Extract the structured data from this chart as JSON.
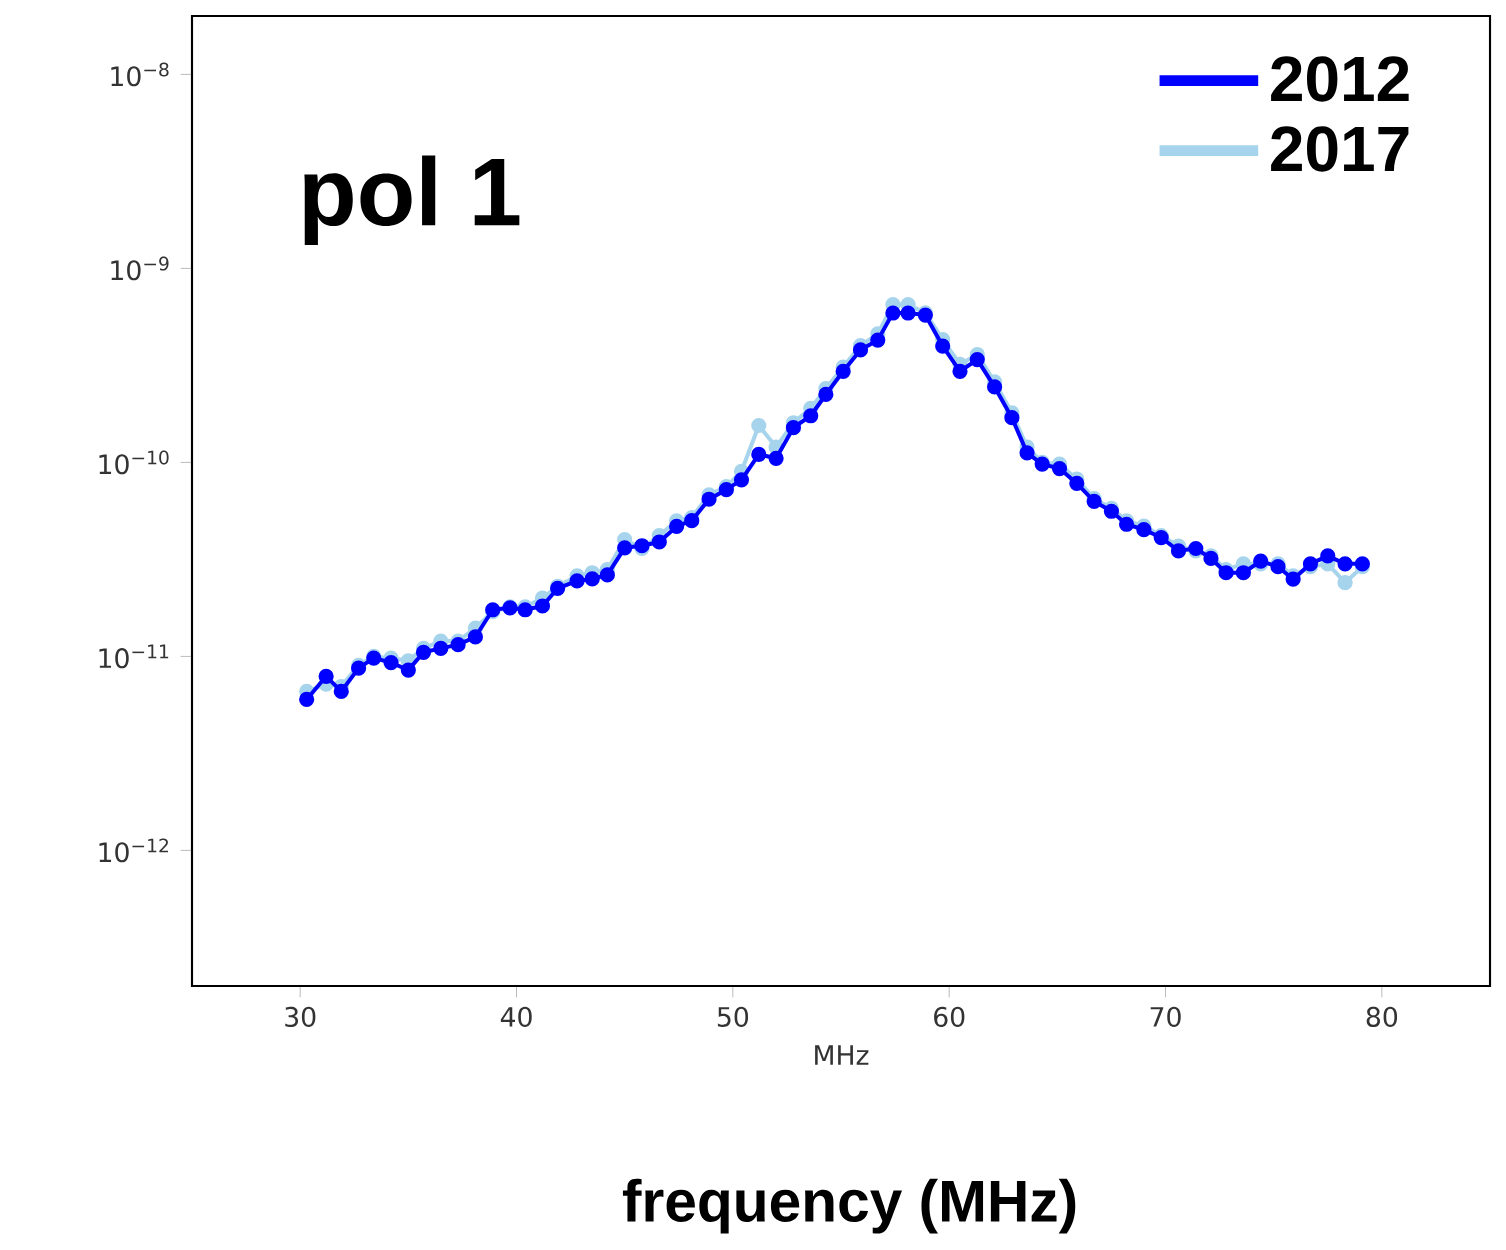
{
  "chart_data": {
    "type": "line",
    "xlabel": "MHz",
    "annotations": [
      "pol 1",
      "frequency (MHz)"
    ],
    "x": [
      30.3,
      31.2,
      31.9,
      32.7,
      33.4,
      34.2,
      35.0,
      35.7,
      36.5,
      37.3,
      38.1,
      38.9,
      39.7,
      40.4,
      41.2,
      41.9,
      42.8,
      43.5,
      44.2,
      45.0,
      45.8,
      46.6,
      47.4,
      48.1,
      48.9,
      49.7,
      50.4,
      51.2,
      52.0,
      52.8,
      53.6,
      54.3,
      55.1,
      55.9,
      56.7,
      57.4,
      58.1,
      58.9,
      59.7,
      60.5,
      61.3,
      62.1,
      62.9,
      63.6,
      64.3,
      65.1,
      65.9,
      66.7,
      67.5,
      68.2,
      69.0,
      69.8,
      70.6,
      71.4,
      72.1,
      72.8,
      73.6,
      74.4,
      75.2,
      75.9,
      76.7,
      77.5,
      78.3,
      79.1
    ],
    "series": [
      {
        "name": "2012",
        "color": "#0000ff",
        "values": [
          6e-12,
          7.9e-12,
          6.6e-12,
          8.7e-12,
          9.8e-12,
          9.3e-12,
          8.5e-12,
          1.05e-11,
          1.1e-11,
          1.15e-11,
          1.26e-11,
          1.74e-11,
          1.78e-11,
          1.74e-11,
          1.82e-11,
          2.24e-11,
          2.45e-11,
          2.51e-11,
          2.63e-11,
          3.63e-11,
          3.72e-11,
          3.89e-11,
          4.68e-11,
          5.01e-11,
          6.46e-11,
          7.24e-11,
          8.13e-11,
          1.1e-10,
          1.05e-10,
          1.51e-10,
          1.74e-10,
          2.24e-10,
          2.95e-10,
          3.8e-10,
          4.27e-10,
          5.89e-10,
          5.89e-10,
          5.75e-10,
          3.98e-10,
          2.95e-10,
          3.39e-10,
          2.45e-10,
          1.7e-10,
          1.12e-10,
          9.8e-11,
          9.3e-11,
          7.8e-11,
          6.3e-11,
          5.6e-11,
          4.8e-11,
          4.5e-11,
          4.1e-11,
          3.5e-11,
          3.6e-11,
          3.2e-11,
          2.7e-11,
          2.7e-11,
          3.1e-11,
          2.9e-11,
          2.5e-11,
          3e-11,
          3.3e-11,
          3e-11,
          3e-11
        ]
      },
      {
        "name": "2017",
        "color": "#a6d4ec",
        "values": [
          6.6e-12,
          7.2e-12,
          7e-12,
          9e-12,
          1e-11,
          9.8e-12,
          9.5e-12,
          1.1e-11,
          1.2e-11,
          1.2e-11,
          1.4e-11,
          1.7e-11,
          1.8e-11,
          1.8e-11,
          2e-11,
          2.3e-11,
          2.6e-11,
          2.7e-11,
          2.8e-11,
          4e-11,
          3.6e-11,
          4.2e-11,
          5e-11,
          5.2e-11,
          6.8e-11,
          7.5e-11,
          9e-11,
          1.55e-10,
          1.2e-10,
          1.6e-10,
          1.9e-10,
          2.4e-10,
          3.1e-10,
          4e-10,
          4.6e-10,
          6.5e-10,
          6.5e-10,
          5.9e-10,
          4.3e-10,
          3.2e-10,
          3.6e-10,
          2.6e-10,
          1.8e-10,
          1.2e-10,
          1e-10,
          9.8e-11,
          8.2e-11,
          6.5e-11,
          5.8e-11,
          5e-11,
          4.7e-11,
          4.2e-11,
          3.7e-11,
          3.5e-11,
          3.3e-11,
          2.8e-11,
          3e-11,
          3e-11,
          3e-11,
          2.6e-11,
          2.9e-11,
          3e-11,
          2.4e-11,
          2.9e-11
        ]
      }
    ],
    "xlim": [
      25,
      85
    ],
    "xticks": [
      30,
      40,
      50,
      60,
      70,
      80
    ],
    "ylim": [
      2e-13,
      2e-08
    ],
    "log": "y",
    "yticks": [
      {
        "value": 1e-12,
        "label": "10$^{−12}$"
      },
      {
        "value": 1e-11,
        "label": "10$^{−11}$"
      },
      {
        "value": 1e-10,
        "label": "10$^{−10}$"
      },
      {
        "value": 1e-09,
        "label": "10$^{−9}$"
      },
      {
        "value": 1e-08,
        "label": "10$^{−8}$"
      }
    ],
    "grid": false,
    "legend": "top right",
    "marker": "circle",
    "line_style": "solid"
  }
}
